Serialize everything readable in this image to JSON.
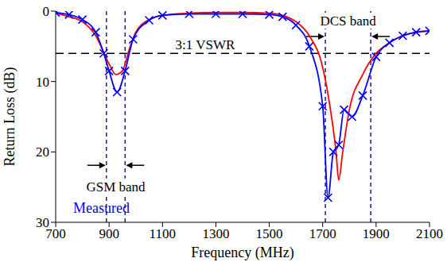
{
  "chart_data": {
    "type": "line",
    "x_label": "Frequency (MHz)",
    "y_label": "Return Loss (dB)",
    "xlim": [
      700,
      2100
    ],
    "xticks": [
      700,
      900,
      1100,
      1300,
      1500,
      1700,
      1900,
      2100
    ],
    "ylim": [
      30,
      0
    ],
    "yticks": [
      0,
      10,
      20,
      30
    ],
    "grid": false,
    "series": [
      {
        "color": "#ff0000",
        "line_style": "solid",
        "x": [
          700,
          750,
          800,
          850,
          900,
          925,
          950,
          975,
          1000,
          1050,
          1100,
          1200,
          1300,
          1400,
          1500,
          1550,
          1600,
          1650,
          1700,
          1725,
          1750,
          1760,
          1775,
          1800,
          1850,
          1900,
          1950,
          2000,
          2050,
          2100
        ],
        "values": [
          0.3,
          0.8,
          1.5,
          3.5,
          7.5,
          9,
          8.5,
          5.5,
          3,
          1.2,
          0.6,
          0.3,
          0.2,
          0.2,
          0.3,
          0.6,
          1.5,
          3.5,
          8,
          13,
          20,
          24,
          20,
          14,
          9,
          6,
          4.5,
          3.5,
          3,
          2.8
        ]
      },
      {
        "name": "Measured",
        "color": "#0000ff",
        "line_style": "solid",
        "marker": "x",
        "x": [
          700,
          750,
          800,
          850,
          880,
          900,
          930,
          960,
          990,
          1050,
          1100,
          1200,
          1300,
          1400,
          1500,
          1550,
          1600,
          1650,
          1700,
          1720,
          1740,
          1760,
          1780,
          1810,
          1850,
          1900,
          1950,
          2000,
          2050,
          2100
        ],
        "values": [
          0.2,
          0.5,
          1.2,
          3,
          6,
          8.5,
          11.5,
          8.5,
          4,
          1.3,
          0.6,
          0.4,
          0.4,
          0.4,
          0.5,
          0.8,
          2,
          5,
          13.5,
          26.5,
          20,
          19,
          14,
          15,
          12,
          6.5,
          4.5,
          3.5,
          3,
          2.8
        ]
      }
    ],
    "reference_lines": [
      {
        "y": 6,
        "label": "3:1 VSWR"
      }
    ],
    "bands": [
      {
        "label": "GSM band",
        "range": [
          890,
          960
        ]
      },
      {
        "label": "DCS band",
        "range": [
          1710,
          1880
        ]
      }
    ]
  }
}
